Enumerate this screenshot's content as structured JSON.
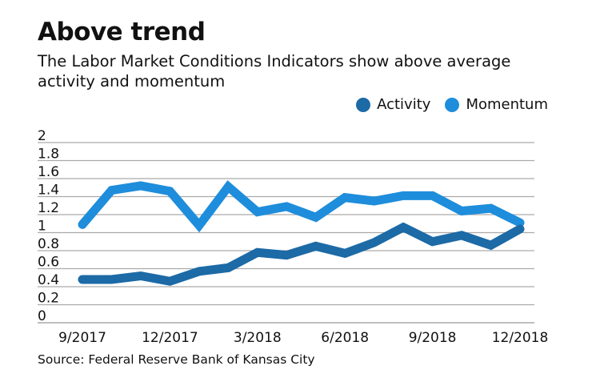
{
  "title": "Above trend",
  "subtitle": "The Labor Market Conditions Indicators show above average activity and momentum",
  "source": "Source: Federal Reserve Bank of Kansas City",
  "chart_data": {
    "type": "line",
    "title": "Above trend",
    "xlabel": "",
    "ylabel": "",
    "ylim": [
      0,
      2
    ],
    "yticks": [
      "0",
      "0.2",
      "0.4",
      "0.6",
      "0.8",
      "1",
      "1.2",
      "1.4",
      "1.6",
      "1.8",
      "2"
    ],
    "x": [
      "9/2017",
      "10/2017",
      "11/2017",
      "12/2017",
      "1/2018",
      "2/2018",
      "3/2018",
      "4/2018",
      "5/2018",
      "6/2018",
      "7/2018",
      "8/2018",
      "9/2018",
      "10/2018",
      "11/2018",
      "12/2018"
    ],
    "xtick_labels": [
      "9/2017",
      "12/2017",
      "3/2018",
      "6/2018",
      "9/2018",
      "12/2018"
    ],
    "grid": true,
    "legend_placement": "top-right",
    "series": [
      {
        "name": "Activity",
        "color": "#1c6aa6",
        "values": [
          0.48,
          0.48,
          0.52,
          0.46,
          0.57,
          0.61,
          0.78,
          0.75,
          0.85,
          0.77,
          0.89,
          1.06,
          0.9,
          0.97,
          0.86,
          1.04
        ]
      },
      {
        "name": "Momentum",
        "color": "#1e8ddb",
        "values": [
          1.09,
          1.47,
          1.52,
          1.46,
          1.08,
          1.51,
          1.23,
          1.29,
          1.17,
          1.39,
          1.35,
          1.41,
          1.41,
          1.24,
          1.27,
          1.11
        ]
      }
    ]
  }
}
